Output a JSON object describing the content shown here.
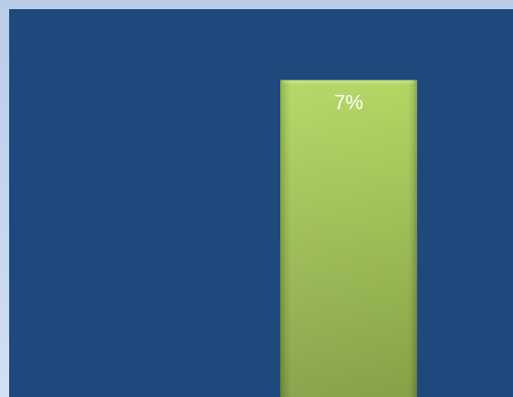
{
  "chart_data": {
    "type": "bar",
    "categories": [
      ""
    ],
    "series": [
      {
        "values": [
          7
        ]
      }
    ],
    "data_labels": [
      "7%"
    ],
    "ylim": [
      0,
      7.8
    ],
    "grid": false,
    "legend": "none",
    "colors": {
      "plot_background": "#1f497d",
      "page_background": "#c5d6ee",
      "bar_top": "#aed45a",
      "bar_bottom": "#7d9c3b",
      "label": "#ffffff"
    }
  }
}
